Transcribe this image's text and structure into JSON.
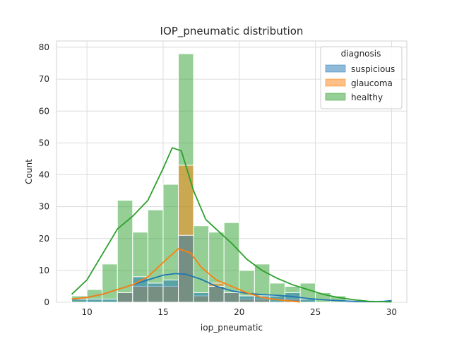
{
  "chart_data": {
    "type": "histogram",
    "title": "IOP_pneumatic distribution",
    "xlabel": "iop_pneumatic",
    "ylabel": "Count",
    "xlim": [
      8.0,
      31.0
    ],
    "ylim": [
      0,
      82
    ],
    "xticks": [
      10,
      15,
      20,
      25,
      30
    ],
    "yticks": [
      0,
      10,
      20,
      30,
      40,
      50,
      60,
      70,
      80
    ],
    "grid": true,
    "legend": {
      "title": "diagnosis",
      "placement": "top-right"
    },
    "bin_edges": [
      9.0,
      10.0,
      11.0,
      12.0,
      13.0,
      14.0,
      15.0,
      16.0,
      17.0,
      18.0,
      19.0,
      20.0,
      21.0,
      22.0,
      23.0,
      24.0,
      25.0,
      26.0,
      27.0,
      28.0,
      29.0,
      30.0
    ],
    "series": [
      {
        "name": "suspicious",
        "color": "#1f77b4",
        "counts": [
          1,
          1,
          1,
          3,
          8,
          6,
          7,
          21,
          3,
          5,
          3,
          2,
          2,
          2,
          3,
          1,
          0,
          0,
          0,
          0,
          0
        ],
        "kde": [
          [
            9.0,
            1.0
          ],
          [
            10.0,
            1.5
          ],
          [
            11.0,
            2.5
          ],
          [
            12.0,
            4.0
          ],
          [
            13.0,
            5.5
          ],
          [
            14.0,
            7.0
          ],
          [
            15.0,
            8.5
          ],
          [
            15.8,
            9.0
          ],
          [
            16.5,
            8.8
          ],
          [
            17.5,
            7.2
          ],
          [
            18.5,
            5.0
          ],
          [
            19.5,
            3.6
          ],
          [
            20.5,
            2.8
          ],
          [
            21.5,
            2.4
          ],
          [
            22.5,
            2.2
          ],
          [
            23.5,
            1.8
          ],
          [
            24.5,
            1.2
          ],
          [
            25.5,
            0.8
          ],
          [
            26.5,
            0.5
          ],
          [
            27.5,
            0.3
          ],
          [
            28.5,
            0.2
          ],
          [
            29.5,
            0.3
          ],
          [
            30.0,
            0.5
          ]
        ]
      },
      {
        "name": "glaucoma",
        "color": "#ff7f0e",
        "counts": [
          0,
          0,
          0,
          3,
          5,
          5,
          5,
          43,
          2,
          6,
          3,
          1,
          1,
          0,
          1,
          0,
          0,
          0,
          0,
          0,
          0
        ],
        "kde": [
          [
            9.0,
            1.0
          ],
          [
            10.0,
            1.5
          ],
          [
            11.0,
            2.5
          ],
          [
            12.0,
            4.0
          ],
          [
            13.0,
            5.5
          ],
          [
            14.0,
            8.0
          ],
          [
            15.0,
            12.5
          ],
          [
            16.0,
            16.8
          ],
          [
            16.8,
            15.5
          ],
          [
            17.5,
            11.0
          ],
          [
            18.5,
            7.0
          ],
          [
            19.5,
            5.0
          ],
          [
            20.5,
            3.0
          ],
          [
            21.5,
            1.5
          ],
          [
            22.5,
            0.8
          ],
          [
            23.5,
            0.3
          ],
          [
            24.0,
            0.1
          ]
        ]
      },
      {
        "name": "healthy",
        "color": "#2ca02c",
        "counts": [
          2,
          4,
          12,
          32,
          22,
          29,
          37,
          78,
          24,
          22,
          25,
          10,
          12,
          6,
          5,
          6,
          3,
          2,
          0,
          0,
          0
        ],
        "kde": [
          [
            9.0,
            2.5
          ],
          [
            10.0,
            7.0
          ],
          [
            11.0,
            15.0
          ],
          [
            12.0,
            23.0
          ],
          [
            13.0,
            27.0
          ],
          [
            14.0,
            32.0
          ],
          [
            15.0,
            42.0
          ],
          [
            15.6,
            48.5
          ],
          [
            16.2,
            47.5
          ],
          [
            17.0,
            35.0
          ],
          [
            17.8,
            26.0
          ],
          [
            18.7,
            22.0
          ],
          [
            19.5,
            18.5
          ],
          [
            20.5,
            13.5
          ],
          [
            21.5,
            10.0
          ],
          [
            22.5,
            7.5
          ],
          [
            23.5,
            5.5
          ],
          [
            24.5,
            4.0
          ],
          [
            25.5,
            2.5
          ],
          [
            26.5,
            1.5
          ],
          [
            27.5,
            0.8
          ],
          [
            28.5,
            0.3
          ],
          [
            29.5,
            0.2
          ],
          [
            30.0,
            0.1
          ]
        ]
      }
    ]
  }
}
